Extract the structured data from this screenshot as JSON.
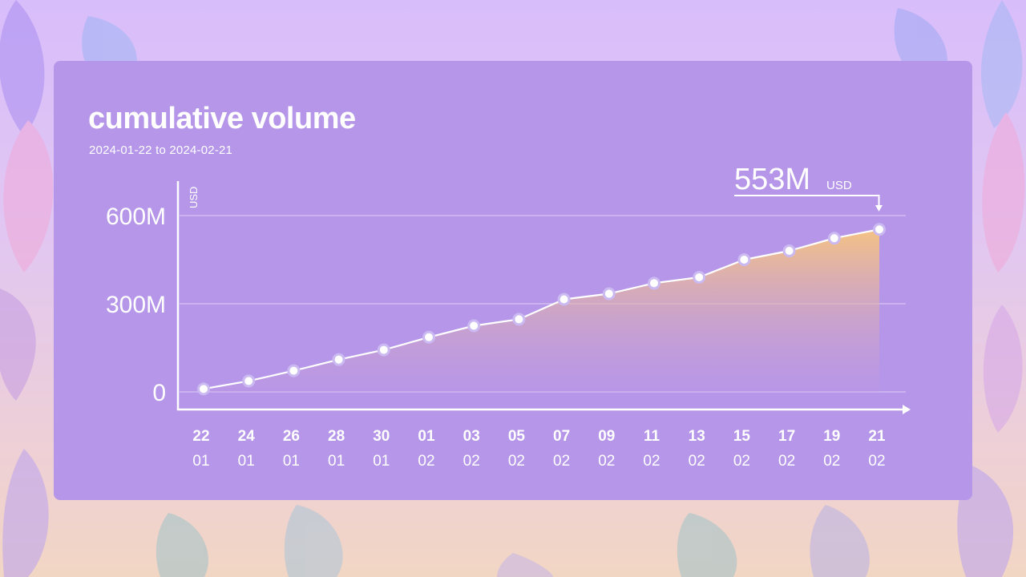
{
  "title": "cumulative volume",
  "subtitle": "2024-01-22 to 2024-02-21",
  "colors": {
    "card": "#b596e8",
    "area_top": "#f8c47e",
    "area_bottom": "#c39ae2",
    "line": "#ffffff",
    "marker_fill": "#ffffff",
    "marker_stroke": "#cbb9f2"
  },
  "chart_data": {
    "type": "area",
    "title": "cumulative volume",
    "ylabel": "USD",
    "ylim": [
      0,
      600000000
    ],
    "yticks": [
      {
        "value": 0,
        "label": "0"
      },
      {
        "value": 300000000,
        "label": "300M"
      },
      {
        "value": 600000000,
        "label": "600M"
      }
    ],
    "grid": true,
    "x_days": [
      "22",
      "24",
      "26",
      "28",
      "30",
      "01",
      "03",
      "05",
      "07",
      "09",
      "11",
      "13",
      "15",
      "17",
      "19",
      "21"
    ],
    "x_months": [
      "01",
      "01",
      "01",
      "01",
      "01",
      "02",
      "02",
      "02",
      "02",
      "02",
      "02",
      "02",
      "02",
      "02",
      "02",
      "02"
    ],
    "x": [
      "2024-01-22",
      "2024-01-24",
      "2024-01-26",
      "2024-01-28",
      "2024-01-30",
      "2024-02-01",
      "2024-02-03",
      "2024-02-05",
      "2024-02-07",
      "2024-02-09",
      "2024-02-11",
      "2024-02-13",
      "2024-02-15",
      "2024-02-17",
      "2024-02-19",
      "2024-02-21"
    ],
    "values": [
      10000000,
      37000000,
      72000000,
      110000000,
      143000000,
      186000000,
      225000000,
      247000000,
      315000000,
      334000000,
      370000000,
      390000000,
      450000000,
      480000000,
      523000000,
      553000000
    ],
    "callout": {
      "value": "553M",
      "unit": "USD"
    }
  }
}
